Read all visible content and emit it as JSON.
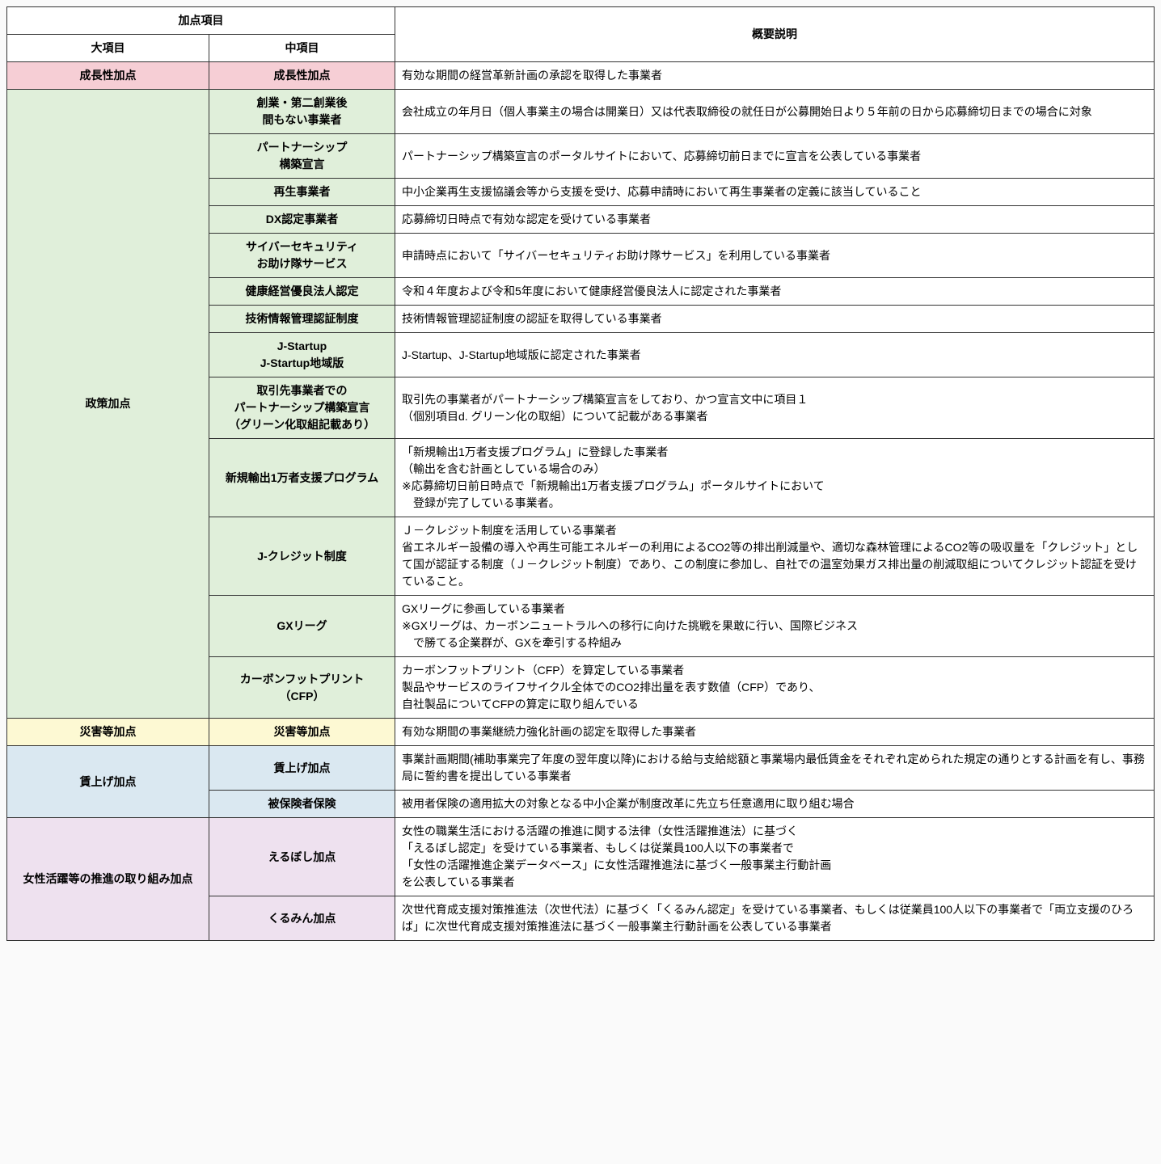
{
  "colors": {
    "pink": "#f6ced5",
    "green": "#e0efda",
    "yellow": "#fdf9d3",
    "blue": "#dae8f1",
    "purple": "#eee1ef",
    "white": "#ffffff"
  },
  "header": {
    "scoring_items": "加点項目",
    "description": "概要説明",
    "major": "大項目",
    "middle": "中項目"
  },
  "rows": [
    {
      "cat": "成長性加点",
      "cat_color": "pink",
      "cat_rowspan": 1,
      "sub": "成長性加点",
      "sub_color": "pink",
      "desc": "有効な期間の経営革新計画の承認を取得した事業者"
    },
    {
      "cat": "政策加点",
      "cat_color": "green",
      "cat_rowspan": 13,
      "sub": "創業・第二創業後\n間もない事業者",
      "sub_color": "green",
      "desc": "会社成立の年月日（個人事業主の場合は開業日）又は代表取締役の就任日が公募開始日より５年前の日から応募締切日までの場合に対象"
    },
    {
      "sub": "パートナーシップ\n構築宣言",
      "sub_color": "green",
      "desc": "パートナーシップ構築宣言のポータルサイトにおいて、応募締切前日までに宣言を公表している事業者"
    },
    {
      "sub": "再生事業者",
      "sub_color": "green",
      "desc": "中小企業再生支援協議会等から支援を受け、応募申請時において再生事業者の定義に該当していること"
    },
    {
      "sub": "DX認定事業者",
      "sub_color": "green",
      "desc": "応募締切日時点で有効な認定を受けている事業者"
    },
    {
      "sub": "サイバーセキュリティ\nお助け隊サービス",
      "sub_color": "green",
      "desc": "申請時点において「サイバーセキュリティお助け隊サービス」を利用している事業者"
    },
    {
      "sub": "健康経営優良法人認定",
      "sub_color": "green",
      "desc": "令和４年度および令和5年度において健康経営優良法人に認定された事業者"
    },
    {
      "sub": "技術情報管理認証制度",
      "sub_color": "green",
      "desc": "技術情報管理認証制度の認証を取得している事業者"
    },
    {
      "sub": "J-Startup\nJ-Startup地域版",
      "sub_color": "green",
      "desc": "J-Startup、J-Startup地域版に認定された事業者"
    },
    {
      "sub": "取引先事業者での\nパートナーシップ構築宣言\n（グリーン化取組記載あり）",
      "sub_color": "green",
      "desc": "取引先の事業者がパートナーシップ構築宣言をしており、かつ宣言文中に項目１\n（個別項目d. グリーン化の取組）について記載がある事業者"
    },
    {
      "sub": "新規輸出1万者支援プログラム",
      "sub_color": "green",
      "desc": "「新規輸出1万者支援プログラム」に登録した事業者\n（輸出を含む計画としている場合のみ）\n※応募締切日前日時点で「新規輸出1万者支援プログラム」ポータルサイトにおいて\n　登録が完了している事業者。"
    },
    {
      "sub": "J-クレジット制度",
      "sub_color": "green",
      "desc": "Ｊ－クレジット制度を活用している事業者\n省エネルギー設備の導入や再生可能エネルギーの利用によるCO2等の排出削減量や、適切な森林管理によるCO2等の吸収量を「クレジット」として国が認証する制度（Ｊ－クレジット制度）であり、この制度に参加し、自社での温室効果ガス排出量の削減取組についてクレジット認証を受けていること。"
    },
    {
      "sub": "GXリーグ",
      "sub_color": "green",
      "desc": "GXリーグに参画している事業者\n※GXリーグは、カーボンニュートラルへの移行に向けた挑戦を果敢に行い、国際ビジネス\n　で勝てる企業群が、GXを牽引する枠組み"
    },
    {
      "sub": "カーボンフットプリント\n（CFP）",
      "sub_color": "green",
      "desc": "カーボンフットプリント（CFP）を算定している事業者\n製品やサービスのライフサイクル全体でのCO2排出量を表す数値（CFP）であり、\n自社製品についてCFPの算定に取り組んでいる"
    },
    {
      "cat": "災害等加点",
      "cat_color": "yellow",
      "cat_rowspan": 1,
      "sub": "災害等加点",
      "sub_color": "yellow",
      "desc": "有効な期間の事業継続力強化計画の認定を取得した事業者"
    },
    {
      "cat": "賃上げ加点",
      "cat_color": "blue",
      "cat_rowspan": 2,
      "sub": "賃上げ加点",
      "sub_color": "blue",
      "desc": "事業計画期間(補助事業完了年度の翌年度以降)における給与支給総額と事業場内最低賃金をそれぞれ定められた規定の通りとする計画を有し、事務局に誓約書を提出している事業者"
    },
    {
      "sub": "被保険者保険",
      "sub_color": "blue",
      "desc": "被用者保険の適用拡大の対象となる中小企業が制度改革に先立ち任意適用に取り組む場合"
    },
    {
      "cat": "女性活躍等の推進の取り組み加点",
      "cat_color": "purple",
      "cat_rowspan": 2,
      "sub": "えるぼし加点",
      "sub_color": "purple",
      "desc": "女性の職業生活における活躍の推進に関する法律（女性活躍推進法）に基づく\n「えるぼし認定」を受けている事業者、もしくは従業員100人以下の事業者で\n「女性の活躍推進企業データベース」に女性活躍推進法に基づく一般事業主行動計画\nを公表している事業者"
    },
    {
      "sub": "くるみん加点",
      "sub_color": "purple",
      "desc": "次世代育成支援対策推進法（次世代法）に基づく「くるみん認定」を受けている事業者、もしくは従業員100人以下の事業者で「両立支援のひろば」に次世代育成支援対策推進法に基づく一般事業主行動計画を公表している事業者"
    }
  ]
}
